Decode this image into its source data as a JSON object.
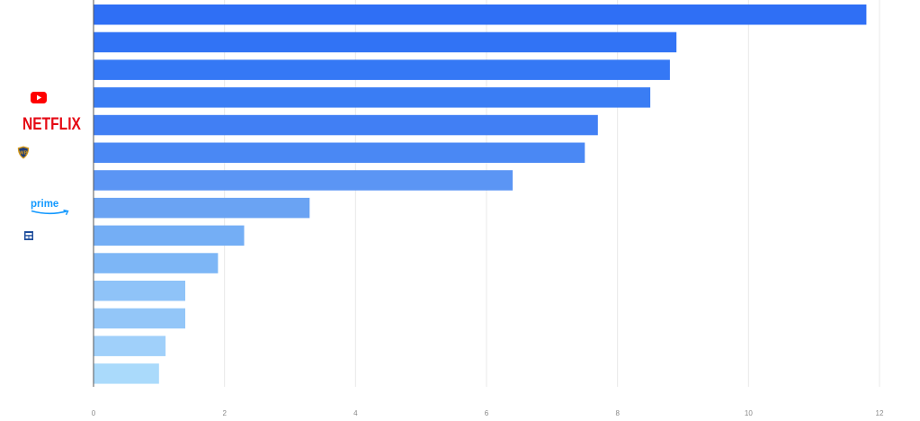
{
  "chart_data": {
    "type": "bar",
    "orientation": "horizontal",
    "values": [
      11.8,
      8.9,
      8.8,
      8.5,
      7.7,
      7.5,
      6.4,
      3.3,
      2.3,
      1.9,
      1.4,
      1.4,
      1.1,
      1.0
    ],
    "xlim": [
      0,
      12
    ],
    "xticks": [
      "0",
      "2",
      "4",
      "6",
      "8",
      "10",
      "12"
    ],
    "grid": "vertical",
    "bar_colors": [
      "#2f6ff5",
      "#3173f5",
      "#3578f5",
      "#3a7df4",
      "#417ff4",
      "#4a88f4",
      "#5b95f4",
      "#6aa3f3",
      "#74aef5",
      "#7db6f6",
      "#8fc3f8",
      "#93c6f8",
      "#a0d0fa",
      "#aadafb"
    ],
    "category_logos": [
      {
        "bar_index": 3,
        "icon": "youtube-logo-icon",
        "color": "#ff0000"
      },
      {
        "bar_index": 4,
        "icon": "netflix-logo-icon",
        "text": "NETFLIX",
        "color": "#e50914"
      },
      {
        "bar_index": 5,
        "icon": "warner-bros-logo-icon",
        "color": "#d59a1c"
      },
      {
        "bar_index": 7,
        "icon": "prime-video-logo-icon",
        "text": "prime",
        "color": "#1399ff"
      },
      {
        "bar_index": 8,
        "icon": "small-blue-logo-icon",
        "color": "#1f4e9c"
      }
    ],
    "colors": {
      "grid": "#e8e8e8",
      "axis": "#555555",
      "tick_label": "#888888"
    }
  }
}
